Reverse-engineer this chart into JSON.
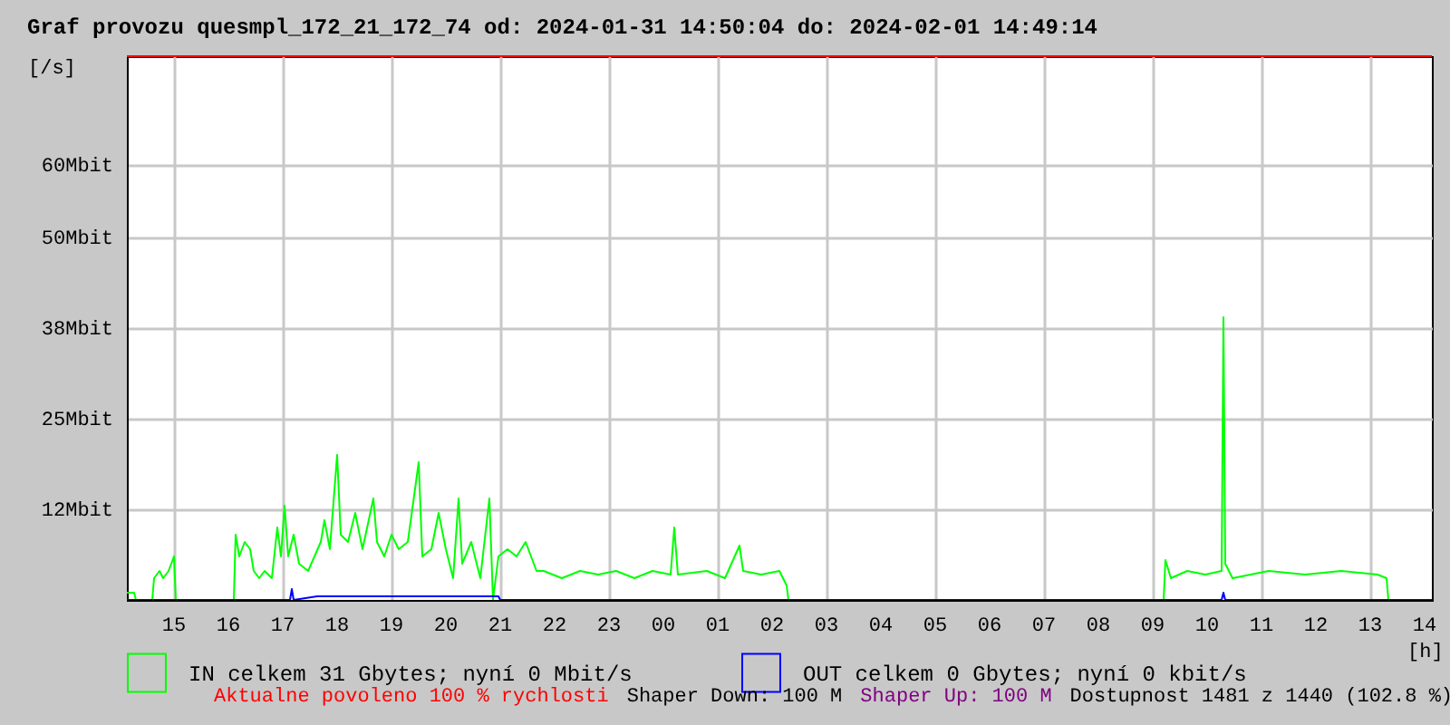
{
  "chart_data": {
    "type": "line",
    "title": "Graf provozu quesmpl_172_21_172_74 od: 2024-01-31 14:50:04 do: 2024-02-01 14:49:14",
    "xlabel": "[h]",
    "ylabel": "[/s]",
    "xlim": [
      "2024-01-31T14:08",
      "2024-02-01T14:08"
    ],
    "ylim": [
      0,
      75
    ],
    "xticks": [
      {
        "value": "2024-01-31T15:00",
        "label": "15"
      },
      {
        "value": "2024-01-31T16:00",
        "label": "16"
      },
      {
        "value": "2024-01-31T17:00",
        "label": "17"
      },
      {
        "value": "2024-01-31T18:00",
        "label": "18"
      },
      {
        "value": "2024-01-31T19:00",
        "label": "19"
      },
      {
        "value": "2024-01-31T20:00",
        "label": "20"
      },
      {
        "value": "2024-01-31T21:00",
        "label": "21"
      },
      {
        "value": "2024-01-31T22:00",
        "label": "22"
      },
      {
        "value": "2024-01-31T23:00",
        "label": "23"
      },
      {
        "value": "2024-02-01T00:00",
        "label": "00"
      },
      {
        "value": "2024-02-01T01:00",
        "label": "01"
      },
      {
        "value": "2024-02-01T02:00",
        "label": "02"
      },
      {
        "value": "2024-02-01T03:00",
        "label": "03"
      },
      {
        "value": "2024-02-01T04:00",
        "label": "04"
      },
      {
        "value": "2024-02-01T05:00",
        "label": "05"
      },
      {
        "value": "2024-02-01T06:00",
        "label": "06"
      },
      {
        "value": "2024-02-01T07:00",
        "label": "07"
      },
      {
        "value": "2024-02-01T08:00",
        "label": "08"
      },
      {
        "value": "2024-02-01T09:00",
        "label": "09"
      },
      {
        "value": "2024-02-01T10:00",
        "label": "10"
      },
      {
        "value": "2024-02-01T11:00",
        "label": "11"
      },
      {
        "value": "2024-02-01T12:00",
        "label": "12"
      },
      {
        "value": "2024-02-01T13:00",
        "label": "13"
      },
      {
        "value": "2024-02-01T14:00",
        "label": "14"
      }
    ],
    "yticks": [
      {
        "value": 12.5,
        "label": "12Mbit"
      },
      {
        "value": 25,
        "label": "25Mbit"
      },
      {
        "value": 37.5,
        "label": "38Mbit"
      },
      {
        "value": 50,
        "label": "50Mbit"
      },
      {
        "value": 60,
        "label": "60Mbit"
      }
    ],
    "grid": true,
    "legend": "bottom",
    "marker": "none",
    "line_style": "solid",
    "ref_lines": [
      {
        "axis": "y",
        "value": 75,
        "color": "#ff0000"
      }
    ],
    "annotations": [
      "Aktualne povoleno 100 % rychlosti",
      "Shaper Down: 100 M",
      "Shaper Up: 100 M",
      "Dostupnost 1481 z 1440 (102.8 %)"
    ],
    "series": [
      {
        "name": "IN celkem 31 Gbytes; nyní 0 Mbit/s",
        "color": "#00ff00",
        "x": [
          "2024-01-31T14:08",
          "2024-01-31T14:16",
          "2024-01-31T14:18",
          "2024-01-31T14:36",
          "2024-01-31T14:38",
          "2024-01-31T14:44",
          "2024-01-31T14:48",
          "2024-01-31T14:54",
          "2024-01-31T15:00",
          "2024-01-31T15:02",
          "2024-01-31T16:06",
          "2024-01-31T16:08",
          "2024-01-31T16:12",
          "2024-01-31T16:18",
          "2024-01-31T16:24",
          "2024-01-31T16:28",
          "2024-01-31T16:34",
          "2024-01-31T16:40",
          "2024-01-31T16:48",
          "2024-01-31T16:54",
          "2024-01-31T16:58",
          "2024-01-31T17:02",
          "2024-01-31T17:06",
          "2024-01-31T17:12",
          "2024-01-31T17:18",
          "2024-01-31T17:28",
          "2024-01-31T17:42",
          "2024-01-31T17:46",
          "2024-01-31T17:52",
          "2024-01-31T18:00",
          "2024-01-31T18:04",
          "2024-01-31T18:12",
          "2024-01-31T18:20",
          "2024-01-31T18:28",
          "2024-01-31T18:40",
          "2024-01-31T18:44",
          "2024-01-31T18:52",
          "2024-01-31T19:00",
          "2024-01-31T19:08",
          "2024-01-31T19:18",
          "2024-01-31T19:30",
          "2024-01-31T19:34",
          "2024-01-31T19:44",
          "2024-01-31T19:52",
          "2024-01-31T20:00",
          "2024-01-31T20:08",
          "2024-01-31T20:14",
          "2024-01-31T20:18",
          "2024-01-31T20:28",
          "2024-01-31T20:38",
          "2024-01-31T20:48",
          "2024-01-31T20:52",
          "2024-01-31T20:58",
          "2024-01-31T21:08",
          "2024-01-31T21:18",
          "2024-01-31T21:28",
          "2024-01-31T21:40",
          "2024-01-31T21:48",
          "2024-01-31T22:08",
          "2024-01-31T22:28",
          "2024-01-31T22:48",
          "2024-01-31T23:08",
          "2024-01-31T23:28",
          "2024-01-31T23:48",
          "2024-02-01T00:08",
          "2024-02-01T00:12",
          "2024-02-01T00:16",
          "2024-02-01T00:48",
          "2024-02-01T01:08",
          "2024-02-01T01:24",
          "2024-02-01T01:28",
          "2024-02-01T01:48",
          "2024-02-01T02:08",
          "2024-02-01T02:16",
          "2024-02-01T02:18",
          "2024-02-01T09:12",
          "2024-02-01T09:14",
          "2024-02-01T09:20",
          "2024-02-01T09:38",
          "2024-02-01T09:58",
          "2024-02-01T10:16",
          "2024-02-01T10:18",
          "2024-02-01T10:20",
          "2024-02-01T10:28",
          "2024-02-01T11:08",
          "2024-02-01T11:48",
          "2024-02-01T12:28",
          "2024-02-01T13:08",
          "2024-02-01T13:18",
          "2024-02-01T13:20",
          "2024-02-01T14:08"
        ],
        "values": [
          1,
          1,
          0,
          0,
          3,
          4,
          3,
          4,
          6,
          0,
          0,
          9,
          6,
          8,
          7,
          4,
          3,
          4,
          3,
          10,
          6,
          13,
          6,
          9,
          5,
          4,
          8,
          11,
          7,
          20,
          9,
          8,
          12,
          7,
          14,
          8,
          6,
          9,
          7,
          8,
          19,
          6,
          7,
          12,
          7,
          3,
          14,
          5,
          8,
          3,
          14,
          0,
          6,
          7,
          6,
          8,
          4,
          4,
          3,
          4,
          3.5,
          4,
          3,
          4,
          3.5,
          10,
          3.5,
          4,
          3,
          7.5,
          4,
          3.5,
          4,
          2,
          0,
          0,
          5.5,
          3,
          4,
          3.5,
          4,
          39,
          5,
          3,
          4,
          3.5,
          4,
          3.5,
          3,
          0,
          0
        ]
      },
      {
        "name": "OUT celkem 0 Gbytes; nyní 0 kbit/s",
        "color": "#0000ff",
        "x": [
          "2024-01-31T14:08",
          "2024-01-31T17:08",
          "2024-01-31T17:10",
          "2024-01-31T17:12",
          "2024-01-31T17:38",
          "2024-01-31T20:58",
          "2024-01-31T21:00",
          "2024-02-01T10:16",
          "2024-02-01T10:18",
          "2024-02-01T10:20",
          "2024-02-01T14:08"
        ],
        "values": [
          0,
          0,
          1.5,
          0,
          0.5,
          0.5,
          0,
          0,
          1,
          0,
          0
        ]
      }
    ]
  }
}
